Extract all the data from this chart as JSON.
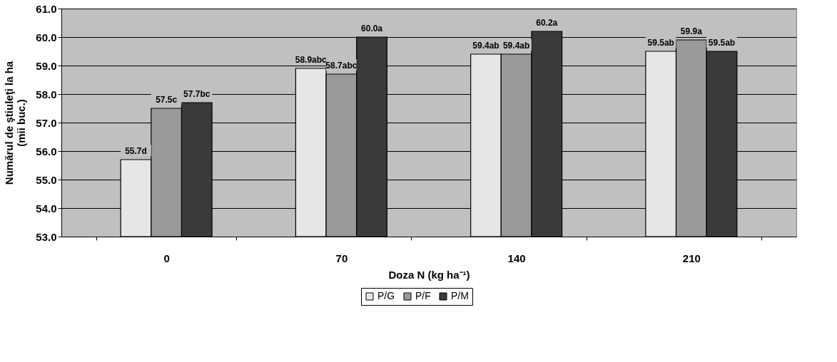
{
  "chart_data": {
    "type": "bar",
    "xlabel": "Doza N (kg ha⁻¹)",
    "ylabel": "Numărul de ştiuleţi la ha\n(mii buc.)",
    "categories": [
      "0",
      "70",
      "140",
      "210"
    ],
    "series": [
      {
        "name": "P/G",
        "color": "#e6e6e6",
        "values": [
          55.7,
          58.9,
          59.4,
          59.5
        ],
        "value_labels": [
          "55.7d",
          "58.9abc",
          "59.4ab",
          "59.5ab"
        ]
      },
      {
        "name": "P/F",
        "color": "#9a9a9a",
        "values": [
          57.5,
          58.7,
          59.4,
          59.9
        ],
        "value_labels": [
          "57.5c",
          "58.7abc",
          "59.4ab",
          "59.9a"
        ]
      },
      {
        "name": "P/M",
        "color": "#3a3a3a",
        "values": [
          57.7,
          60.0,
          60.2,
          59.5
        ],
        "value_labels": [
          "57.7bc",
          "60.0a",
          "60.2a",
          "59.5ab"
        ]
      }
    ],
    "ylim": [
      53.0,
      61.0
    ],
    "yticks": [
      {
        "value": 53,
        "label": "53.0"
      },
      {
        "value": 54,
        "label": "54.0"
      },
      {
        "value": 55,
        "label": "55.0"
      },
      {
        "value": 56,
        "label": "56.0"
      },
      {
        "value": 57,
        "label": "57.0"
      },
      {
        "value": 58,
        "label": "58.0"
      },
      {
        "value": 59,
        "label": "59.0"
      },
      {
        "value": 60,
        "label": "60.0"
      },
      {
        "value": 61,
        "label": "61.0"
      }
    ],
    "grid": "y",
    "legend": "bottom"
  }
}
